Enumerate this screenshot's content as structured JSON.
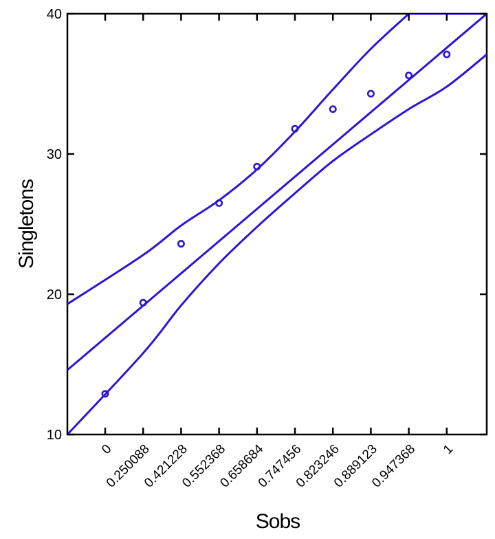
{
  "chart_data": {
    "type": "scatter",
    "xlabel": "Sobs",
    "ylabel": "Singletons",
    "ylim": [
      10,
      40
    ],
    "y_ticks": [
      10,
      20,
      30,
      40
    ],
    "x_ticks": [
      "0",
      "0.250088",
      "0.421228",
      "0.552368",
      "0.658684",
      "0.747456",
      "0.823246",
      "0.889123",
      "0.947368",
      "1"
    ],
    "points": [
      {
        "x": "0",
        "y": 12.9
      },
      {
        "x": "0.250088",
        "y": 19.4
      },
      {
        "x": "0.421228",
        "y": 23.6
      },
      {
        "x": "0.552368",
        "y": 26.5
      },
      {
        "x": "0.658684",
        "y": 29.1
      },
      {
        "x": "0.747456",
        "y": 31.8
      },
      {
        "x": "0.823246",
        "y": 33.2
      },
      {
        "x": "0.889123",
        "y": 34.3
      },
      {
        "x": "0.947368",
        "y": 35.6
      },
      {
        "x": "1",
        "y": 37.1
      }
    ],
    "fit_line": {
      "y_at_left_edge": 14.6,
      "y_at_right_edge": 40.0
    },
    "upper_band": [
      {
        "x": "left-edge",
        "y": 19.3
      },
      {
        "x": "0.250088",
        "y": 22.8
      },
      {
        "x": "0.421228",
        "y": 24.9
      },
      {
        "x": "0.552368",
        "y": 26.7
      },
      {
        "x": "0.658684",
        "y": 28.9
      },
      {
        "x": "0.747456",
        "y": 31.6
      },
      {
        "x": "0.823246",
        "y": 34.6
      },
      {
        "x": "0.889123",
        "y": 37.5
      },
      {
        "x": "0.947368",
        "y": 40.0
      }
    ],
    "lower_band": [
      {
        "x": "left-edge",
        "y": 10.0
      },
      {
        "x": "0.250088",
        "y": 15.8
      },
      {
        "x": "0.421228",
        "y": 19.2
      },
      {
        "x": "0.552368",
        "y": 22.2
      },
      {
        "x": "0.658684",
        "y": 24.8
      },
      {
        "x": "0.747456",
        "y": 27.2
      },
      {
        "x": "0.823246",
        "y": 29.5
      },
      {
        "x": "0.889123",
        "y": 31.4
      },
      {
        "x": "0.947368",
        "y": 33.2
      },
      {
        "x": "1",
        "y": 34.8
      },
      {
        "x": "right-edge",
        "y": 37.1
      }
    ],
    "grid": false,
    "legend": "none",
    "colors": {
      "series": "#2b14d8",
      "axes": "#000000"
    }
  }
}
